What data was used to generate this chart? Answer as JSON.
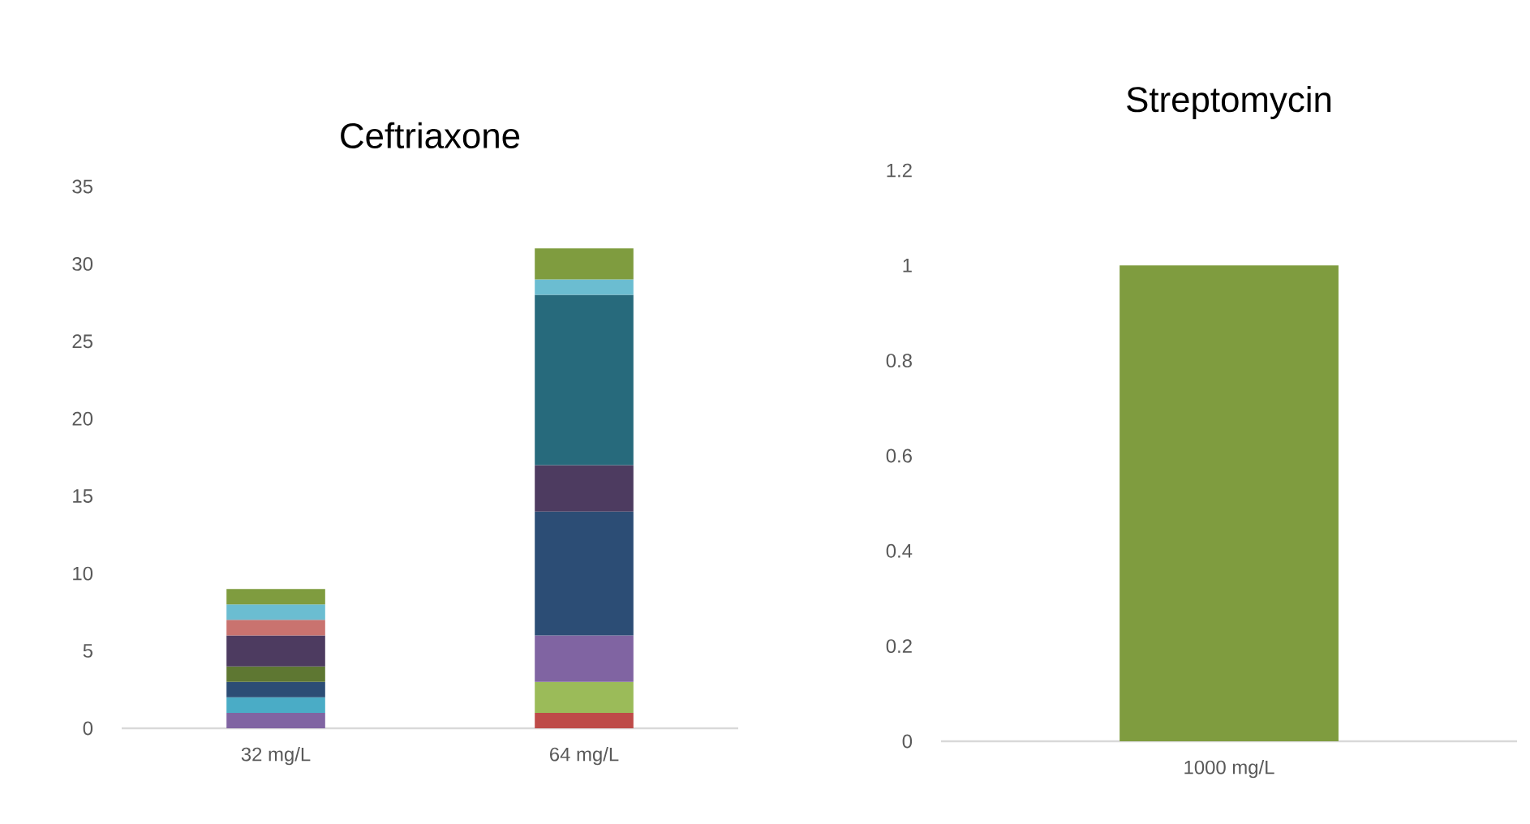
{
  "chart_data": [
    {
      "type": "bar",
      "title": "Ceftriaxone",
      "categories": [
        "32 mg/L",
        "64 mg/L"
      ],
      "stacked": true,
      "ylim": [
        0,
        35
      ],
      "yticks": [
        0,
        5,
        10,
        15,
        20,
        25,
        30,
        35
      ],
      "grid": false,
      "series": [
        {
          "color": "#be4b48",
          "values": [
            0,
            1
          ]
        },
        {
          "color": "#9bbb59",
          "values": [
            0,
            2
          ]
        },
        {
          "color": "#8064a2",
          "values": [
            1,
            3
          ]
        },
        {
          "color": "#4aacc6",
          "values": [
            1,
            0
          ]
        },
        {
          "color": "#2c4d75",
          "values": [
            1,
            8
          ]
        },
        {
          "color": "#5e7732",
          "values": [
            1,
            0
          ]
        },
        {
          "color": "#4d3b60",
          "values": [
            2,
            3
          ]
        },
        {
          "color": "#c9736f",
          "values": [
            1,
            0
          ]
        },
        {
          "color": "#276a7c",
          "values": [
            0,
            11
          ]
        },
        {
          "color": "#6bbdd1",
          "values": [
            1,
            1
          ]
        },
        {
          "color": "#7f9c3f",
          "values": [
            1,
            2
          ]
        }
      ]
    },
    {
      "type": "bar",
      "title": "Streptomycin",
      "categories": [
        "1000 mg/L"
      ],
      "values": [
        1
      ],
      "color": "#7f9c3f",
      "ylim": [
        0,
        1.2
      ],
      "yticks": [
        0,
        0.2,
        0.4,
        0.6,
        0.8,
        1,
        1.2
      ],
      "grid": false
    }
  ]
}
